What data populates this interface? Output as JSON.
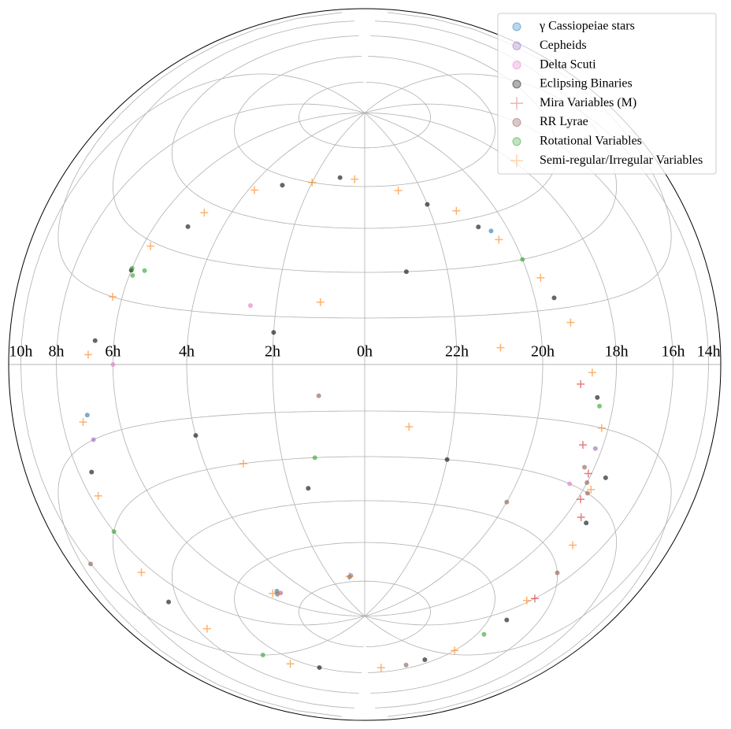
{
  "chart_data": {
    "type": "scatter",
    "projection": "lambert",
    "xticks": [
      {
        "value": 10,
        "label": "10h"
      },
      {
        "value": 8,
        "label": "8h"
      },
      {
        "value": 6,
        "label": "6h"
      },
      {
        "value": 4,
        "label": "4h"
      },
      {
        "value": 2,
        "label": "2h"
      },
      {
        "value": 0,
        "label": "0h"
      },
      {
        "value": 22,
        "label": "22h"
      },
      {
        "value": 20,
        "label": "20h"
      },
      {
        "value": 18,
        "label": "18h"
      },
      {
        "value": 16,
        "label": "16h"
      },
      {
        "value": 14,
        "label": "14h"
      }
    ],
    "grid": true,
    "legend": "upper right",
    "series": [
      {
        "name": "γ Cassiopeiae stars",
        "color": "#1f77b4",
        "marker": "o",
        "x": [
          5.5,
          5.3,
          0.9,
          20.5,
          7
        ],
        "y": [
          -69,
          -68.5,
          -73,
          40,
          -10
        ]
      },
      {
        "name": "Cepheids",
        "color": "#9467bd",
        "marker": "o",
        "x": [
          5.3,
          0.8,
          18.2,
          7
        ],
        "y": [
          -69.5,
          -72.5,
          -20,
          -15
        ]
      },
      {
        "name": "Delta Scuti",
        "color": "#e377c2",
        "marker": "o",
        "x": [
          2.6,
          18.5,
          6
        ],
        "y": [
          18,
          -30,
          0
        ]
      },
      {
        "name": "Eclipsing Binaries",
        "color": "#000000",
        "marker": "o",
        "x": [
          17.5,
          18.5,
          19.5,
          20.8,
          22,
          1,
          3,
          5,
          6,
          6.6,
          7.5,
          8.8,
          11,
          13.5,
          15.5,
          17.2,
          2,
          23,
          22,
          4,
          1.5
        ],
        "y": [
          -25,
          -8,
          18,
          42,
          52,
          63,
          57,
          37,
          22,
          5,
          -20,
          -42,
          -60,
          -62,
          -55,
          -35,
          10,
          30,
          -30,
          -20,
          -40
        ]
      },
      {
        "name": "Mira Variables (M)",
        "color": "#d62728",
        "marker": "+",
        "x": [
          17.9,
          18.1,
          18.6,
          17.5,
          19,
          16
        ],
        "y": [
          -32,
          -26,
          -20,
          -35,
          -5,
          -50
        ]
      },
      {
        "name": "RR Lyrae",
        "color": "#8c564b",
        "marker": "o",
        "x": [
          17.8,
          18,
          18.3,
          16.5,
          13,
          20,
          1,
          10
        ],
        "y": [
          -30,
          -28,
          -25,
          -45,
          -62,
          -40,
          -10,
          -20
        ]
      },
      {
        "name": "Rotational Variables",
        "color": "#2ca02c",
        "marker": "o",
        "x": [
          6,
          5.6,
          5.9,
          18.4,
          8,
          10,
          20,
          1.2,
          15
        ],
        "y": [
          22.5,
          23,
          21,
          -10,
          -30,
          -55,
          30,
          -30,
          -58
        ]
      },
      {
        "name": "Semi-regular/Irregular Variables",
        "color": "#ff7f0e",
        "marker": "+",
        "x": [
          17.76,
          18.2,
          18.7,
          19.2,
          19.7,
          20.4,
          21.2,
          22.8,
          0.4,
          2,
          3.8,
          4.8,
          5.76,
          6.3,
          6.8,
          7.2,
          7.7,
          8.4,
          9.2,
          10.5,
          12.4,
          14.2,
          16.1,
          17,
          5.4,
          5.6,
          0.9,
          1,
          23,
          3,
          21
        ],
        "y": [
          -28.9,
          -15,
          -2,
          11,
          24,
          37,
          48.3,
          58,
          62.7,
          60,
          53,
          42,
          28.9,
          15,
          2,
          -11,
          -24,
          -37,
          -48.3,
          -57,
          -62.7,
          -60,
          -52,
          -40,
          -69,
          -68,
          -72.8,
          20,
          -20,
          -30,
          5
        ]
      }
    ]
  }
}
